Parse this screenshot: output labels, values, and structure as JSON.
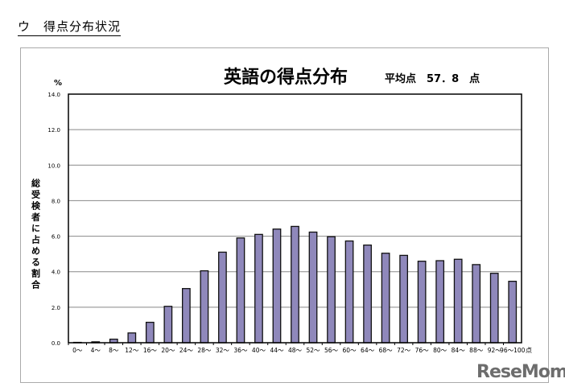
{
  "section_title": "ウ　得点分布状況",
  "logo": "ReseMom",
  "chart_data": {
    "type": "bar",
    "title": "英語の得点分布",
    "subtitle": "平均点　57．8　点",
    "ylabel": "総受検者に占める割合",
    "yunit": "%",
    "xunit": "点",
    "ylim": [
      0,
      14
    ],
    "yticks": [
      "0.0",
      "2.0",
      "4.0",
      "6.0",
      "8.0",
      "10.0",
      "12.0",
      "14.0"
    ],
    "grid": true,
    "bar_color": "#8f88bb",
    "categories": [
      "0～",
      "4～",
      "8～",
      "12～",
      "16～",
      "20～",
      "24～",
      "28～",
      "32～",
      "36～",
      "40～",
      "44～",
      "48～",
      "52～",
      "56～",
      "60～",
      "64～",
      "68～",
      "72～",
      "76～",
      "80～",
      "84～",
      "88～",
      "92～",
      "96～100"
    ],
    "values": [
      0.02,
      0.05,
      0.2,
      0.55,
      1.15,
      2.05,
      3.05,
      4.05,
      5.1,
      5.9,
      6.1,
      6.4,
      6.55,
      6.23,
      5.97,
      5.73,
      5.5,
      5.04,
      4.92,
      4.59,
      4.62,
      4.7,
      4.4,
      3.91,
      3.46
    ]
  }
}
